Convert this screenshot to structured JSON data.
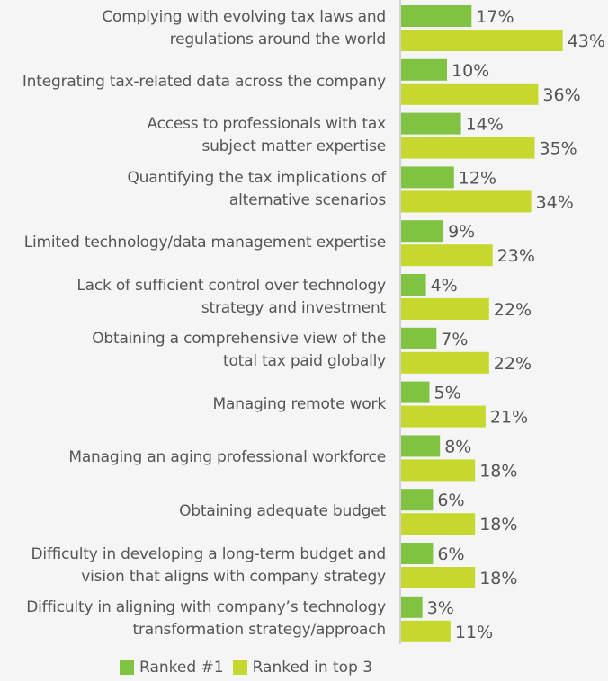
{
  "chart_data": {
    "type": "bar",
    "orientation": "horizontal",
    "categories": [
      "Complying with evolving tax laws and\nregulations around the world",
      "Integrating tax-related data across the company",
      "Access to professionals with tax\nsubject matter expertise",
      "Quantifying the tax implications of\nalternative scenarios",
      "Limited technology/data management expertise",
      "Lack of sufficient control over technology\nstrategy and investment",
      "Obtaining a comprehensive view of the\ntotal tax paid globally",
      "Managing remote work",
      "Managing an aging professional workforce",
      "Obtaining adequate budget",
      "Difficulty in developing a long-term budget and\nvision that aligns with company strategy",
      "Difficulty in aligning with company’s technology\ntransformation strategy/approach"
    ],
    "series": [
      {
        "name": "Ranked #1",
        "color": "#80c242",
        "values": [
          17,
          10,
          14,
          12,
          9,
          4,
          7,
          5,
          8,
          6,
          6,
          3
        ]
      },
      {
        "name": "Ranked in top 3",
        "color": "#c6d82e",
        "values": [
          43,
          36,
          35,
          34,
          23,
          22,
          22,
          21,
          18,
          18,
          18,
          11
        ]
      }
    ],
    "value_suffix": "%",
    "legend": "bottom",
    "grid": false
  }
}
